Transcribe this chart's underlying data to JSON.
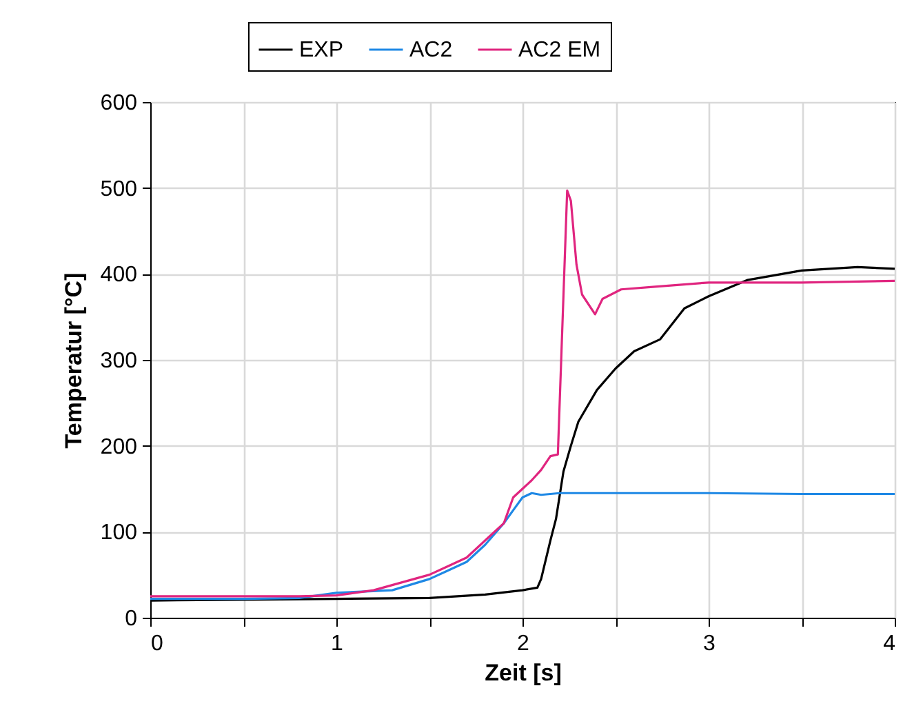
{
  "chart_data": {
    "type": "line",
    "xlabel": "Zeit [s]",
    "ylabel": "Temperatur [°C]",
    "xlim": [
      0,
      4
    ],
    "xticks": [
      0,
      {
        "value": 0.5,
        "label": null
      },
      1,
      {
        "value": 1.5,
        "label": null
      },
      2,
      {
        "value": 2.5,
        "label": null
      },
      3,
      {
        "value": 3.5,
        "label": null
      },
      4
    ],
    "ylim": [
      0,
      600
    ],
    "yticks": [
      0,
      100,
      200,
      300,
      400,
      500,
      600
    ],
    "grid": true,
    "legend": "top",
    "marker": "none",
    "line_style": "solid",
    "series": [
      {
        "name": "EXP",
        "color": "#000000",
        "x": [
          0,
          0.5,
          1,
          1.5,
          1.8,
          2.0,
          2.08,
          2.1,
          2.15,
          2.18,
          2.22,
          2.26,
          2.3,
          2.4,
          2.5,
          2.6,
          2.74,
          2.87,
          3.0,
          3.21,
          3.5,
          3.8,
          4
        ],
        "values": [
          20,
          21,
          22,
          23,
          27,
          32,
          35,
          45,
          90,
          115,
          170,
          200,
          228,
          265,
          290,
          310,
          324,
          360,
          374,
          393,
          404,
          408,
          406
        ]
      },
      {
        "name": "AC2",
        "color": "#1e88e5",
        "x": [
          0,
          0.5,
          0.8,
          1.0,
          1.3,
          1.5,
          1.6,
          1.7,
          1.8,
          1.9,
          1.95,
          2.0,
          2.05,
          2.1,
          2.2,
          2.3,
          2.5,
          3.0,
          3.5,
          4
        ],
        "values": [
          22,
          22,
          23,
          29,
          32,
          45,
          55,
          65,
          85,
          110,
          125,
          140,
          145,
          143,
          145,
          145,
          145,
          145,
          144,
          144
        ]
      },
      {
        "name": "AC2 EM",
        "color": "#e0257f",
        "x": [
          0,
          0.5,
          0.8,
          1.0,
          1.2,
          1.3,
          1.5,
          1.6,
          1.7,
          1.8,
          1.9,
          1.95,
          2.0,
          2.05,
          2.1,
          2.15,
          2.19,
          2.24,
          2.26,
          2.29,
          2.32,
          2.39,
          2.43,
          2.53,
          2.7,
          3.0,
          3.5,
          4
        ],
        "values": [
          25,
          25,
          25,
          26,
          32,
          38,
          50,
          60,
          70,
          90,
          110,
          140,
          150,
          160,
          172,
          188,
          190,
          497,
          485,
          411,
          376,
          353,
          371,
          382,
          385,
          390,
          390,
          392
        ]
      }
    ]
  }
}
